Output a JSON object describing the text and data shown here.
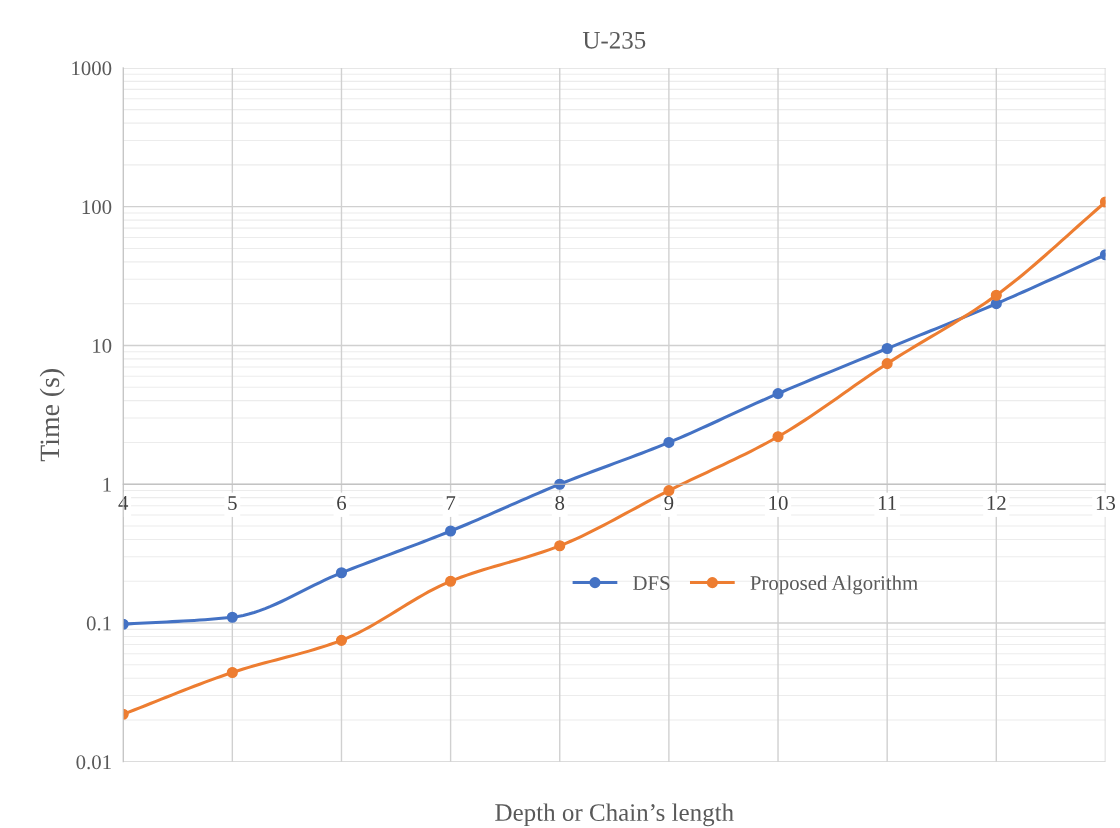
{
  "chart_data": {
    "type": "line",
    "title": "U-235",
    "xlabel": "Depth or Chain’s length",
    "ylabel": "Time (s)",
    "x": [
      4,
      5,
      6,
      7,
      8,
      9,
      10,
      11,
      12,
      13
    ],
    "series": [
      {
        "name": "DFS",
        "color": "#4472c4",
        "values": [
          0.098,
          0.11,
          0.23,
          0.46,
          1.0,
          2.0,
          4.5,
          9.5,
          20,
          45
        ]
      },
      {
        "name": "Proposed Algorithm",
        "color": "#ed7d31",
        "values": [
          0.022,
          0.044,
          0.075,
          0.2,
          0.36,
          0.9,
          2.2,
          7.4,
          23,
          108
        ]
      }
    ],
    "log": "y",
    "xlim": [
      4,
      13
    ],
    "xticks": [
      4,
      5,
      6,
      7,
      8,
      9,
      10,
      11,
      12,
      13
    ],
    "ylim": [
      0.01,
      1000
    ],
    "yticks": [
      0.01,
      0.1,
      1,
      10,
      100,
      1000
    ],
    "grid": true,
    "legend": "center right",
    "marker": "circle",
    "line_style": "solid"
  }
}
